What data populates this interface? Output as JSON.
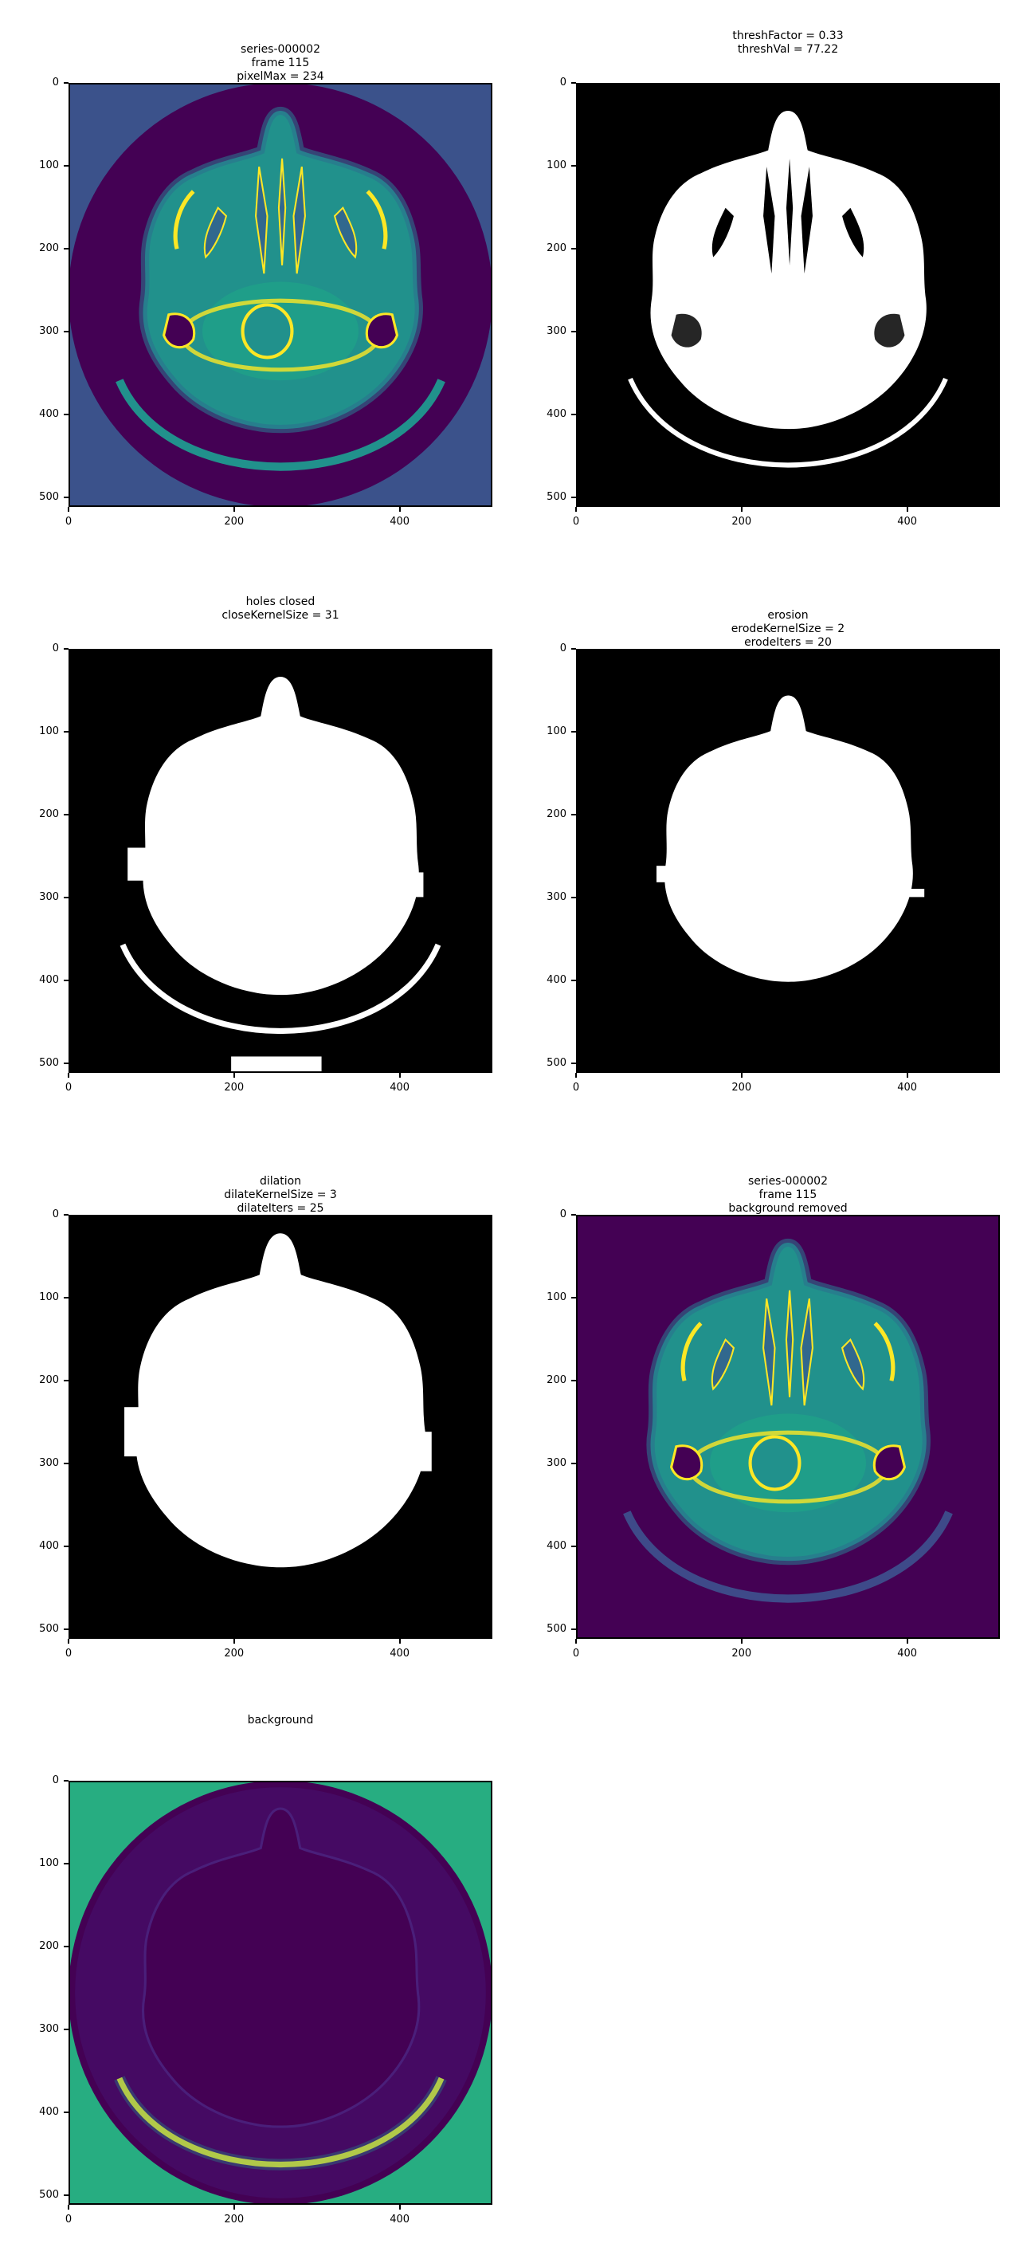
{
  "figure": {
    "panels": [
      {
        "id": "original",
        "title_lines": [
          "series-000002",
          "frame 115",
          "pixelMax = 234"
        ],
        "style": "viridis-ct"
      },
      {
        "id": "threshold",
        "title_lines": [
          "threshFactor = 0.33",
          "threshVal = 77.22"
        ],
        "style": "binary-thresh"
      },
      {
        "id": "holes-closed",
        "title_lines": [
          "holes closed",
          "closeKernelSize = 31"
        ],
        "style": "binary-closed"
      },
      {
        "id": "erosion",
        "title_lines": [
          "erosion",
          "erodeKernelSize = 2",
          "erodeIters = 20"
        ],
        "style": "binary-eroded"
      },
      {
        "id": "dilation",
        "title_lines": [
          "dilation",
          "dilateKernelSize = 3",
          "dilateIters = 25"
        ],
        "style": "binary-dilated"
      },
      {
        "id": "background-removed",
        "title_lines": [
          "series-000002",
          "frame 115",
          "background removed"
        ],
        "style": "viridis-removed"
      },
      {
        "id": "background",
        "title_lines": [
          "background"
        ],
        "style": "viridis-background"
      }
    ],
    "axes": {
      "x_ticks": [
        "0",
        "200",
        "400"
      ],
      "y_ticks": [
        "0",
        "100",
        "200",
        "300",
        "400",
        "500"
      ],
      "x_tick_values": [
        0,
        200,
        400
      ],
      "y_tick_values": [
        0,
        100,
        200,
        300,
        400,
        500
      ],
      "image_extent": [
        0,
        512
      ]
    },
    "colors": {
      "viridis_dark": "#440154",
      "viridis_blue": "#3b528b",
      "viridis_teal": "#21918c",
      "viridis_green": "#27ad81",
      "viridis_yellow": "#fde725",
      "black": "#000000",
      "white": "#ffffff"
    }
  }
}
